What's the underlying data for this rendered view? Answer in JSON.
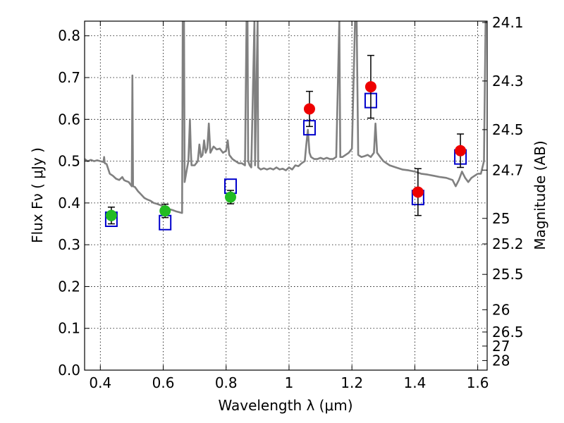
{
  "chart_data": {
    "type": "scatter",
    "xlabel": "Wavelength  λ (μm)",
    "ylabel": "Flux  Fν  ( μJy )",
    "y2label": "Magnitude (AB)",
    "xlim": [
      0.35,
      1.63
    ],
    "ylim": [
      0.0,
      0.835
    ],
    "grid": true,
    "x_ticks": [
      "0.4",
      "0.6",
      "0.8",
      "1",
      "1.2",
      "1.4",
      "1.6"
    ],
    "y_ticks": [
      "0.0",
      "0.1",
      "0.2",
      "0.3",
      "0.4",
      "0.5",
      "0.6",
      "0.7",
      "0.8"
    ],
    "mag_ticks": [
      "24.1",
      "24.3",
      "24.5",
      "24.7",
      "25",
      "25.2",
      "25.5",
      "26",
      "26.5",
      "27",
      "28"
    ],
    "colors": {
      "spectrum": "#808080",
      "green_points": "#22bb22",
      "red_points": "#ee0000",
      "model_boxes": "#0000cc"
    },
    "series": [
      {
        "marker": "circle",
        "color": "#22bb22",
        "points": [
          {
            "x": 0.435,
            "y": 0.37,
            "err": 0.02
          },
          {
            "x": 0.606,
            "y": 0.381,
            "err": 0.016
          },
          {
            "x": 0.814,
            "y": 0.414,
            "err": 0.016
          }
        ]
      },
      {
        "marker": "circle",
        "color": "#ee0000",
        "points": [
          {
            "x": 1.065,
            "y": 0.625,
            "err": 0.042
          },
          {
            "x": 1.26,
            "y": 0.678,
            "err": 0.075
          },
          {
            "x": 1.41,
            "y": 0.426,
            "err": 0.056
          },
          {
            "x": 1.545,
            "y": 0.525,
            "err": 0.04
          }
        ]
      },
      {
        "marker": "open-square",
        "color": "#0000cc",
        "points": [
          {
            "x": 0.435,
            "y": 0.361
          },
          {
            "x": 0.606,
            "y": 0.353
          },
          {
            "x": 0.814,
            "y": 0.44
          },
          {
            "x": 1.065,
            "y": 0.58
          },
          {
            "x": 1.26,
            "y": 0.645
          },
          {
            "x": 1.41,
            "y": 0.413
          },
          {
            "x": 1.545,
            "y": 0.51
          }
        ]
      },
      {
        "marker": "line",
        "color": "#808080",
        "points": [
          [
            0.35,
            0.505
          ],
          [
            0.36,
            0.5
          ],
          [
            0.37,
            0.503
          ],
          [
            0.38,
            0.5
          ],
          [
            0.39,
            0.502
          ],
          [
            0.4,
            0.5
          ],
          [
            0.41,
            0.498
          ],
          [
            0.412,
            0.51
          ],
          [
            0.414,
            0.495
          ],
          [
            0.42,
            0.493
          ],
          [
            0.43,
            0.47
          ],
          [
            0.44,
            0.465
          ],
          [
            0.45,
            0.458
          ],
          [
            0.46,
            0.455
          ],
          [
            0.47,
            0.462
          ],
          [
            0.475,
            0.455
          ],
          [
            0.48,
            0.453
          ],
          [
            0.49,
            0.45
          ],
          [
            0.495,
            0.445
          ],
          [
            0.5,
            0.44
          ],
          [
            0.502,
            0.705
          ],
          [
            0.504,
            0.44
          ],
          [
            0.51,
            0.438
          ],
          [
            0.52,
            0.428
          ],
          [
            0.53,
            0.42
          ],
          [
            0.54,
            0.412
          ],
          [
            0.55,
            0.408
          ],
          [
            0.56,
            0.405
          ],
          [
            0.57,
            0.4
          ],
          [
            0.58,
            0.398
          ],
          [
            0.59,
            0.395
          ],
          [
            0.6,
            0.392
          ],
          [
            0.62,
            0.385
          ],
          [
            0.63,
            0.383
          ],
          [
            0.64,
            0.38
          ],
          [
            0.65,
            0.378
          ],
          [
            0.66,
            0.376
          ],
          [
            0.662,
            0.835
          ],
          [
            0.664,
            0.835
          ],
          [
            0.666,
            0.835
          ],
          [
            0.668,
            0.45
          ],
          [
            0.675,
            0.48
          ],
          [
            0.68,
            0.5
          ],
          [
            0.685,
            0.6
          ],
          [
            0.688,
            0.52
          ],
          [
            0.69,
            0.49
          ],
          [
            0.7,
            0.49
          ],
          [
            0.71,
            0.5
          ],
          [
            0.715,
            0.54
          ],
          [
            0.72,
            0.51
          ],
          [
            0.725,
            0.515
          ],
          [
            0.73,
            0.55
          ],
          [
            0.735,
            0.52
          ],
          [
            0.74,
            0.53
          ],
          [
            0.745,
            0.59
          ],
          [
            0.75,
            0.52
          ],
          [
            0.76,
            0.535
          ],
          [
            0.77,
            0.528
          ],
          [
            0.78,
            0.53
          ],
          [
            0.79,
            0.52
          ],
          [
            0.8,
            0.525
          ],
          [
            0.805,
            0.55
          ],
          [
            0.81,
            0.515
          ],
          [
            0.82,
            0.505
          ],
          [
            0.83,
            0.5
          ],
          [
            0.84,
            0.495
          ],
          [
            0.85,
            0.495
          ],
          [
            0.86,
            0.49
          ],
          [
            0.865,
            0.835
          ],
          [
            0.868,
            0.835
          ],
          [
            0.87,
            0.5
          ],
          [
            0.875,
            0.49
          ],
          [
            0.88,
            0.485
          ],
          [
            0.89,
            0.835
          ],
          [
            0.892,
            0.49
          ],
          [
            0.9,
            0.835
          ],
          [
            0.902,
            0.485
          ],
          [
            0.91,
            0.48
          ],
          [
            0.92,
            0.483
          ],
          [
            0.93,
            0.48
          ],
          [
            0.94,
            0.483
          ],
          [
            0.95,
            0.48
          ],
          [
            0.96,
            0.485
          ],
          [
            0.97,
            0.48
          ],
          [
            0.98,
            0.482
          ],
          [
            0.99,
            0.478
          ],
          [
            1.0,
            0.485
          ],
          [
            1.01,
            0.48
          ],
          [
            1.02,
            0.49
          ],
          [
            1.03,
            0.488
          ],
          [
            1.04,
            0.495
          ],
          [
            1.05,
            0.5
          ],
          [
            1.055,
            0.54
          ],
          [
            1.06,
            0.575
          ],
          [
            1.065,
            0.52
          ],
          [
            1.07,
            0.51
          ],
          [
            1.08,
            0.505
          ],
          [
            1.09,
            0.505
          ],
          [
            1.1,
            0.508
          ],
          [
            1.11,
            0.505
          ],
          [
            1.12,
            0.508
          ],
          [
            1.13,
            0.505
          ],
          [
            1.14,
            0.505
          ],
          [
            1.15,
            0.51
          ],
          [
            1.16,
            0.835
          ],
          [
            1.163,
            0.51
          ],
          [
            1.17,
            0.51
          ],
          [
            1.18,
            0.515
          ],
          [
            1.19,
            0.52
          ],
          [
            1.2,
            0.53
          ],
          [
            1.21,
            0.835
          ],
          [
            1.215,
            0.835
          ],
          [
            1.22,
            0.515
          ],
          [
            1.23,
            0.51
          ],
          [
            1.24,
            0.512
          ],
          [
            1.25,
            0.515
          ],
          [
            1.26,
            0.51
          ],
          [
            1.27,
            0.52
          ],
          [
            1.275,
            0.59
          ],
          [
            1.28,
            0.52
          ],
          [
            1.29,
            0.51
          ],
          [
            1.3,
            0.5
          ],
          [
            1.32,
            0.49
          ],
          [
            1.34,
            0.485
          ],
          [
            1.36,
            0.48
          ],
          [
            1.38,
            0.478
          ],
          [
            1.4,
            0.475
          ],
          [
            1.42,
            0.47
          ],
          [
            1.44,
            0.468
          ],
          [
            1.46,
            0.465
          ],
          [
            1.48,
            0.462
          ],
          [
            1.5,
            0.46
          ],
          [
            1.52,
            0.455
          ],
          [
            1.53,
            0.44
          ],
          [
            1.54,
            0.455
          ],
          [
            1.55,
            0.475
          ],
          [
            1.56,
            0.46
          ],
          [
            1.57,
            0.45
          ],
          [
            1.58,
            0.46
          ],
          [
            1.59,
            0.465
          ],
          [
            1.6,
            0.47
          ],
          [
            1.61,
            0.47
          ],
          [
            1.62,
            0.5
          ],
          [
            1.625,
            0.835
          ],
          [
            1.63,
            0.835
          ]
        ]
      }
    ]
  }
}
